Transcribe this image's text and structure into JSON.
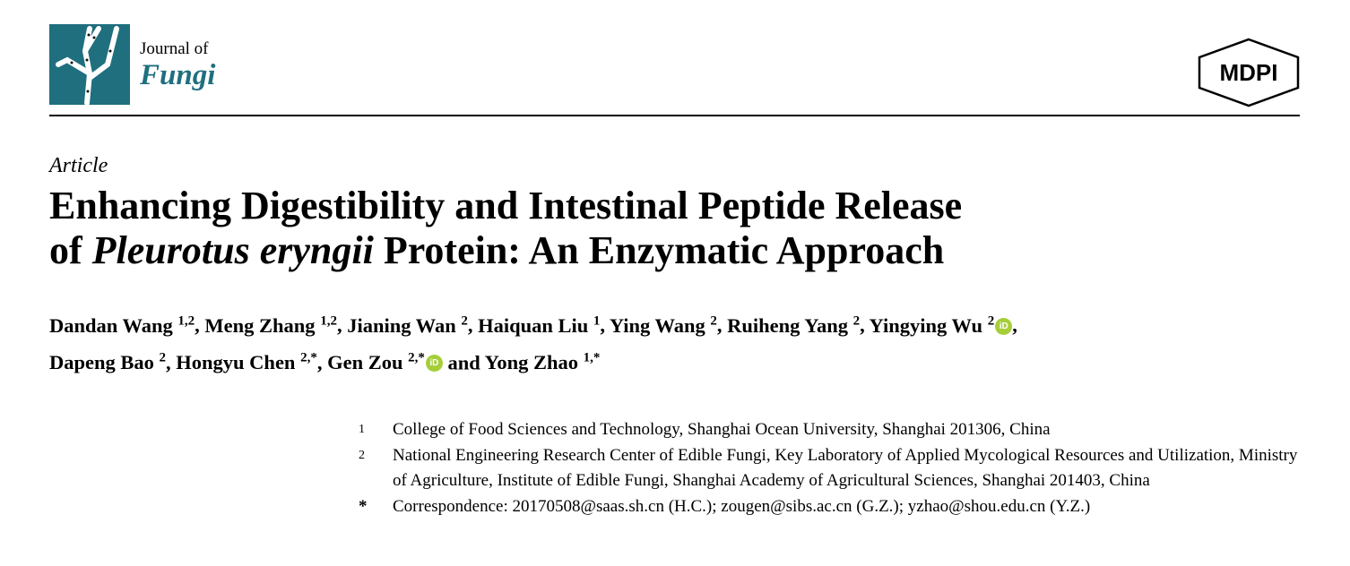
{
  "journal": {
    "name_line1": "Journal of",
    "name_line2": "Fungi",
    "brand_color": "#1f6f7f"
  },
  "publisher": {
    "logo_text": "MDPI"
  },
  "article_type": "Article",
  "title": {
    "line1": "Enhancing Digestibility and Intestinal Peptide Release",
    "line2_prefix": "of ",
    "line2_italic": "Pleurotus eryngii",
    "line2_suffix": " Protein: An Enzymatic Approach"
  },
  "authors": [
    {
      "name": "Dandan Wang",
      "sup": "1,2",
      "sep": ", "
    },
    {
      "name": "Meng Zhang",
      "sup": "1,2",
      "sep": ", "
    },
    {
      "name": "Jianing Wan",
      "sup": "2",
      "sep": ", "
    },
    {
      "name": "Haiquan Liu",
      "sup": "1",
      "sep": ", "
    },
    {
      "name": "Ying Wang",
      "sup": "2",
      "sep": ", "
    },
    {
      "name": "Ruiheng Yang",
      "sup": "2",
      "sep": ", "
    },
    {
      "name": "Yingying Wu",
      "sup": "2",
      "orcid": true,
      "sep": ","
    },
    {
      "name": "Dapeng Bao",
      "sup": "2",
      "sep": ", "
    },
    {
      "name": "Hongyu Chen",
      "sup": "2,*",
      "sep": ", "
    },
    {
      "name": "Gen Zou",
      "sup": "2,*",
      "orcid": true,
      "sep": " and "
    },
    {
      "name": "Yong Zhao",
      "sup": "1,*",
      "sep": ""
    }
  ],
  "orcid_icon": "orcid-icon",
  "orcid_color": "#a6ce39",
  "affiliations": [
    {
      "mark": "1",
      "text": "College of Food Sciences and Technology, Shanghai Ocean University, Shanghai 201306, China"
    },
    {
      "mark": "2",
      "text": "National Engineering Research Center of Edible Fungi, Key Laboratory of Applied Mycological Resources and Utilization, Ministry of Agriculture, Institute of Edible Fungi, Shanghai Academy of Agricultural Sciences, Shanghai 201403, China"
    },
    {
      "mark": "*",
      "text": "Correspondence: 20170508@saas.sh.cn (H.C.); zougen@sibs.ac.cn (G.Z.); yzhao@shou.edu.cn (Y.Z.)"
    }
  ]
}
